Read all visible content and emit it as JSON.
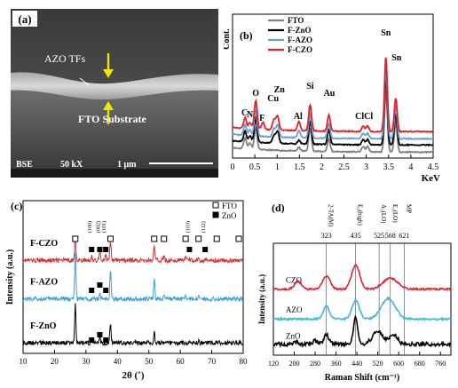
{
  "panel_a": {
    "label": "(a)",
    "film_label": "AZO TFs",
    "substrate_label": "FTO Substrate",
    "footer": {
      "mode": "BSE",
      "mag": "50 kX",
      "scale": "1 μm"
    },
    "colors": {
      "arrow": "#f2e600"
    }
  },
  "chart_data": [
    {
      "id": "b",
      "type": "line",
      "panel_label": "(b)",
      "xlabel": "KeV",
      "ylabel": "Cont.",
      "xlim": [
        0,
        4.5
      ],
      "xticks": [
        "0",
        "0.5",
        "1",
        "1.5",
        "2",
        "2.5",
        "3",
        "3.5",
        "4",
        "4.5"
      ],
      "legend": [
        "FTO",
        "F-ZnO",
        "F-AZO",
        "F-CZO"
      ],
      "legend_position": "top-left",
      "series": [
        {
          "name": "FTO",
          "color": "#7f7f7f",
          "baseline": 6,
          "peaks": [
            [
              0.28,
              12
            ],
            [
              0.39,
              7
            ],
            [
              0.52,
              24
            ],
            [
              1.49,
              4
            ],
            [
              1.74,
              26
            ],
            [
              2.16,
              14
            ],
            [
              2.93,
              6
            ],
            [
              3.03,
              6
            ],
            [
              3.44,
              70
            ],
            [
              3.66,
              33
            ]
          ]
        },
        {
          "name": "F-ZnO",
          "color": "#000000",
          "baseline": 14,
          "peaks": [
            [
              0.28,
              12
            ],
            [
              0.39,
              7
            ],
            [
              0.52,
              28
            ],
            [
              0.93,
              9
            ],
            [
              1.01,
              14
            ],
            [
              1.49,
              4
            ],
            [
              1.74,
              26
            ],
            [
              2.16,
              16
            ],
            [
              2.93,
              6
            ],
            [
              3.03,
              6
            ],
            [
              3.44,
              76
            ],
            [
              3.66,
              35
            ]
          ]
        },
        {
          "name": "F-AZO",
          "color": "#6a9fd4",
          "baseline": 21,
          "peaks": [
            [
              0.28,
              12
            ],
            [
              0.39,
              7
            ],
            [
              0.52,
              30
            ],
            [
              0.93,
              9
            ],
            [
              1.01,
              14
            ],
            [
              1.49,
              8
            ],
            [
              1.74,
              27
            ],
            [
              2.16,
              16
            ],
            [
              2.93,
              6
            ],
            [
              3.03,
              6
            ],
            [
              3.44,
              80
            ],
            [
              3.66,
              37
            ]
          ]
        },
        {
          "name": "F-CZO",
          "color": "#e0202a",
          "baseline": 29,
          "peaks": [
            [
              0.28,
              12
            ],
            [
              0.39,
              7
            ],
            [
              0.52,
              32
            ],
            [
              0.68,
              8
            ],
            [
              0.93,
              12
            ],
            [
              1.01,
              16
            ],
            [
              1.49,
              10
            ],
            [
              1.74,
              29
            ],
            [
              2.16,
              18
            ],
            [
              2.93,
              6
            ],
            [
              3.03,
              6
            ],
            [
              3.44,
              84
            ],
            [
              3.66,
              38
            ]
          ]
        }
      ],
      "annotations": [
        {
          "text": "C",
          "x": 0.27
        },
        {
          "text": "N",
          "x": 0.39
        },
        {
          "text": "O",
          "x": 0.52
        },
        {
          "text": "F",
          "x": 0.66
        },
        {
          "text": "Cu",
          "x": 0.91
        },
        {
          "text": "Zn",
          "x": 1.05
        },
        {
          "text": "Al",
          "x": 1.47
        },
        {
          "text": "Si",
          "x": 1.74
        },
        {
          "text": "Au",
          "x": 2.17
        },
        {
          "text": "Cl",
          "x": 2.85
        },
        {
          "text": "Cl",
          "x": 3.05
        },
        {
          "text": "Sn",
          "x": 3.44
        },
        {
          "text": "Sn",
          "x": 3.68
        }
      ]
    },
    {
      "id": "c",
      "type": "line",
      "panel_label": "(c)",
      "xlabel": "2θ (˚)",
      "ylabel": "Intensity (a.u.)",
      "xlim": [
        10,
        80
      ],
      "xticks": [
        "10",
        "20",
        "30",
        "40",
        "50",
        "60",
        "70",
        "80"
      ],
      "legend": [
        {
          "symbol": "□",
          "name": "FTO"
        },
        {
          "symbol": "■",
          "name": "ZnO"
        }
      ],
      "legend_position": "top-right",
      "series": [
        {
          "name": "F-CZO",
          "color": "#d0303a",
          "offset": 66,
          "peaks": [
            [
              26.6,
              18
            ],
            [
              31.8,
              3
            ],
            [
              34.4,
              9
            ],
            [
              36.3,
              4
            ],
            [
              37.8,
              14
            ],
            [
              51.7,
              10
            ],
            [
              54.8,
              3
            ],
            [
              61.7,
              3
            ],
            [
              65.8,
              3
            ]
          ]
        },
        {
          "name": "F-AZO",
          "color": "#3b9fd4",
          "offset": 38,
          "peaks": [
            [
              26.6,
              34
            ],
            [
              34.4,
              5
            ],
            [
              37.8,
              20
            ],
            [
              51.7,
              14
            ],
            [
              54.8,
              3
            ],
            [
              61.7,
              3
            ],
            [
              65.8,
              3
            ]
          ]
        },
        {
          "name": "F-ZnO",
          "color": "#000000",
          "offset": 6,
          "peaks": [
            [
              26.6,
              28
            ],
            [
              31.8,
              2
            ],
            [
              34.4,
              6
            ],
            [
              37.8,
              15
            ],
            [
              51.7,
              8
            ],
            [
              65.8,
              2
            ]
          ]
        }
      ],
      "annotations": [
        {
          "text": "(100)",
          "x": 31.8
        },
        {
          "text": "(002)",
          "x": 34.4
        },
        {
          "text": "(101)",
          "x": 36.3
        },
        {
          "text": "(103)",
          "x": 62.9
        },
        {
          "text": "(112)",
          "x": 67.9
        }
      ]
    },
    {
      "id": "d",
      "type": "line",
      "panel_label": "(d)",
      "xlabel": "Raman Shift (cm⁻¹)",
      "ylabel": "Intensity (a.u.)",
      "xlim": [
        120,
        800
      ],
      "xticks": [
        "120",
        "200",
        "280",
        "360",
        "440",
        "520",
        "600",
        "680",
        "760"
      ],
      "mode_lines": [
        {
          "label": "2-TA(M)",
          "value": "323",
          "x": 323
        },
        {
          "label": "E₂(high)",
          "value": "435",
          "x": 435
        },
        {
          "label": "A₁(LO)",
          "value": "525",
          "x": 525
        },
        {
          "label": "E₁(LO)",
          "value": "568",
          "x": 568
        },
        {
          "label": "MP",
          "value": "621",
          "x": 621
        }
      ],
      "series": [
        {
          "name": "CZO",
          "color": "#e0202a",
          "baseline": 60,
          "peaks": [
            [
              215,
              8,
              20
            ],
            [
              323,
              14,
              20
            ],
            [
              435,
              26,
              22
            ],
            [
              568,
              12,
              40
            ]
          ]
        },
        {
          "name": "AZO",
          "color": "#3fb6de",
          "baseline": 28,
          "peaks": [
            [
              323,
              14,
              16
            ],
            [
              435,
              20,
              20
            ],
            [
              560,
              22,
              38
            ]
          ]
        },
        {
          "name": "ZnO",
          "color": "#000000",
          "baseline": 0,
          "peaks": [
            [
              205,
              3,
              10
            ],
            [
              280,
              4,
              12
            ],
            [
              323,
              10,
              14
            ],
            [
              435,
              28,
              12
            ],
            [
              520,
              14,
              28
            ],
            [
              580,
              10,
              22
            ]
          ]
        }
      ]
    }
  ]
}
